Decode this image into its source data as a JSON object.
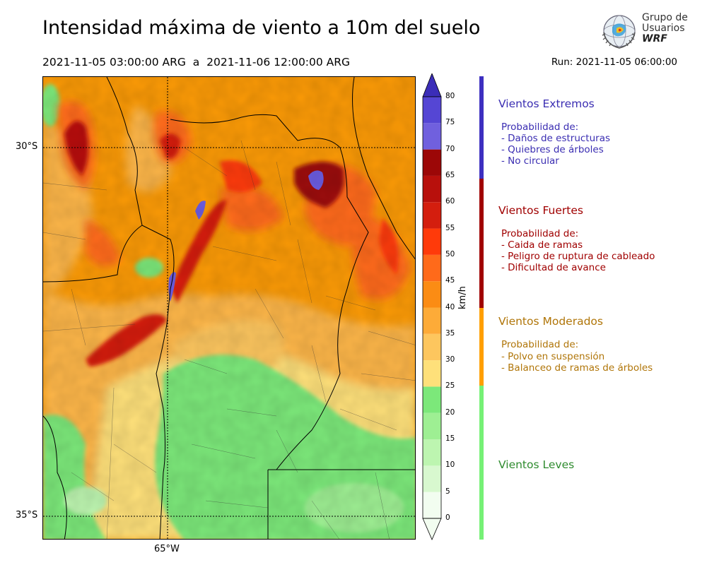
{
  "title": "Intensidad máxima de viento a 10m del suelo",
  "period": "2021-11-05 03:00:00 ARG  a  2021-11-06 12:00:00 ARG",
  "run": "Run: 2021-11-05 06:00:00",
  "logo": {
    "line1": "Grupo de",
    "line2": "Usuarios",
    "line3": "WRF"
  },
  "map": {
    "lat_labels": [
      "30°S",
      "35°S"
    ],
    "lon_labels": [
      "65°W"
    ],
    "field": "Intensidad máxima de viento a 10m",
    "dominant_colors": [
      "#fb9a06",
      "#fdb64a",
      "#ff6a1a",
      "#d41e0e",
      "#a50a0a",
      "#6b5ce0",
      "#7cf07c",
      "#fee07a"
    ]
  },
  "colorbar": {
    "unit": "km/h",
    "ticks": [
      "80",
      "75",
      "70",
      "65",
      "60",
      "55",
      "50",
      "45",
      "40",
      "35",
      "30",
      "25",
      "20",
      "15",
      "10",
      "5",
      "0"
    ],
    "levels": [
      0,
      5,
      10,
      15,
      20,
      25,
      30,
      35,
      40,
      45,
      50,
      55,
      60,
      65,
      70,
      75,
      80
    ],
    "colors": [
      "#f2fdf0",
      "#d8f8cf",
      "#bdf5b0",
      "#9eef93",
      "#7ce87a",
      "#fee07a",
      "#fdc65e",
      "#fdab38",
      "#fb8c14",
      "#ff6a1a",
      "#ff3a0a",
      "#d41e0e",
      "#b8100c",
      "#9c0707",
      "#7060de",
      "#5546d4",
      "#3b2db8"
    ]
  },
  "categories": [
    {
      "title": "Vientos Extremos",
      "color": "#3a2db2",
      "lines": [
        "Probabilidad de:",
        "- Daños de estructuras",
        "- Quiebres de árboles",
        "- No circular"
      ]
    },
    {
      "title": "Vientos Fuertes",
      "color": "#a00000",
      "lines": [
        "Probabilidad de:",
        "- Caida de ramas",
        "- Peligro de ruptura de cableado",
        "- Dificultad de avance"
      ]
    },
    {
      "title": "Vientos Moderados",
      "color": "#b07508",
      "lines": [
        "Probabilidad de:",
        "- Polvo en suspensión",
        "- Balanceo de ramas de árboles"
      ]
    },
    {
      "title": "Vientos Leves",
      "color": "#2e8b2e",
      "lines": []
    }
  ],
  "category_bar_colors": [
    "#3d2fc0",
    "#a00000",
    "#ff9f00",
    "#76f176"
  ]
}
